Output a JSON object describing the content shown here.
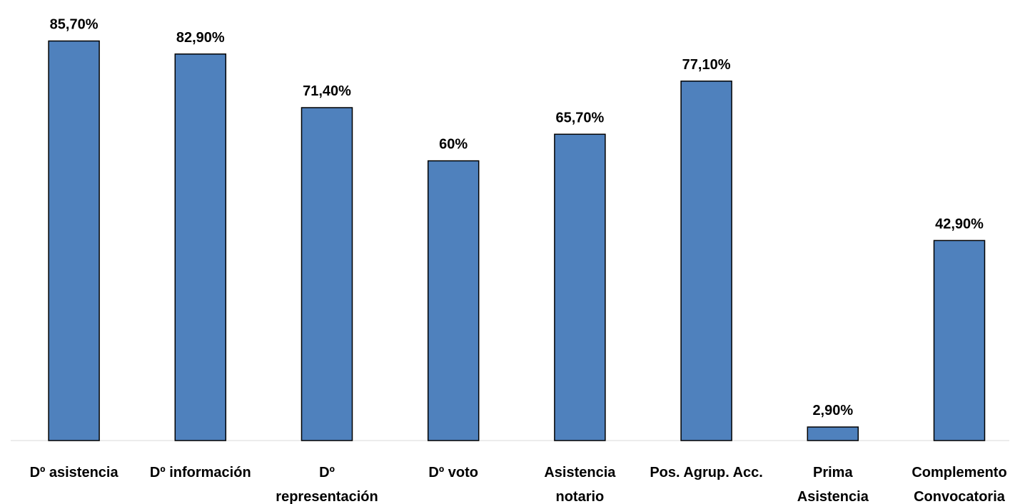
{
  "chart_data": {
    "type": "bar",
    "categories": [
      "Dº asistencia",
      "Dº información",
      "Dº representación",
      "Dº voto",
      "Asistencia notario",
      "Pos. Agrup. Acc.",
      "Prima Asistencia",
      "Complemento Convocatoria"
    ],
    "category_lines": [
      [
        "Dº asistencia"
      ],
      [
        "Dº información"
      ],
      [
        "Dº",
        "representación"
      ],
      [
        "Dº voto"
      ],
      [
        "Asistencia",
        "notario"
      ],
      [
        "Pos. Agrup. Acc."
      ],
      [
        "Prima",
        "Asistencia"
      ],
      [
        "Complemento",
        "Convocatoria"
      ]
    ],
    "values": [
      85.7,
      82.9,
      71.4,
      60,
      65.7,
      77.1,
      2.9,
      42.9
    ],
    "data_labels": [
      "85,70%",
      "82,90%",
      "71,40%",
      "60%",
      "65,70%",
      "77,10%",
      "2,90%",
      "42,90%"
    ],
    "ylim": [
      0,
      100
    ],
    "grid": false,
    "legend": "none",
    "bar_color": "#4F81BD",
    "bar_border_color": "#000000"
  }
}
